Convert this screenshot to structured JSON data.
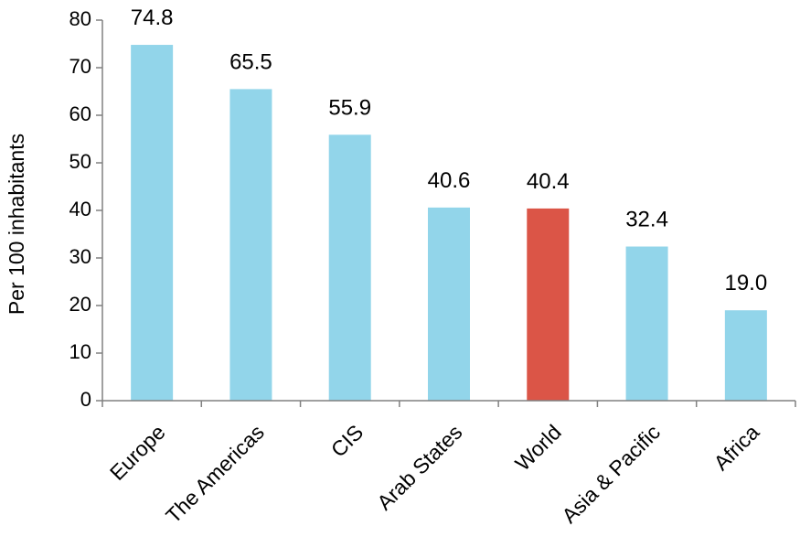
{
  "chart_data": {
    "type": "bar",
    "ylabel": "Per 100 inhabitants",
    "ylim": [
      0,
      80
    ],
    "yticks": [
      0,
      10,
      20,
      30,
      40,
      50,
      60,
      70,
      80
    ],
    "grid": false,
    "categories": [
      "Europe",
      "The Americas",
      "CIS",
      "Arab States",
      "World",
      "Asia & Pacific",
      "Africa"
    ],
    "values": [
      74.8,
      65.5,
      55.9,
      40.6,
      40.4,
      32.4,
      19.0
    ],
    "value_labels": [
      "74.8",
      "65.5",
      "55.9",
      "40.6",
      "40.4",
      "32.4",
      "19.0"
    ],
    "colors": [
      "#92D5EA",
      "#92D5EA",
      "#92D5EA",
      "#92D5EA",
      "#DB5547",
      "#92D5EA",
      "#92D5EA"
    ]
  }
}
